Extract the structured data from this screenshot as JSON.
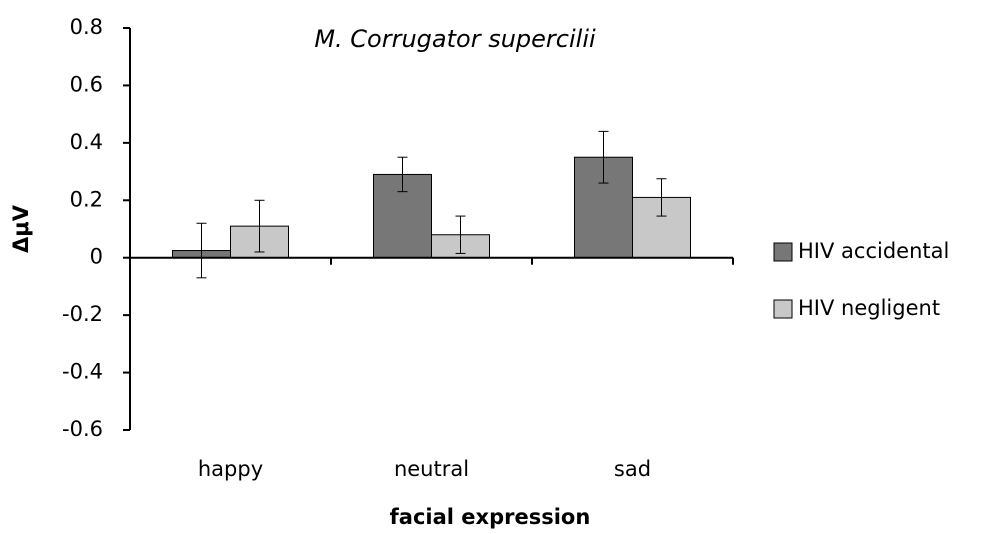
{
  "chart_data": {
    "type": "bar",
    "title": "M. Corrugator supercilii",
    "xlabel": "facial expression",
    "ylabel": "ΔμV",
    "categories": [
      "happy",
      "neutral",
      "sad"
    ],
    "series": [
      {
        "name": "HIV accidental",
        "color": "#777777",
        "values": [
          0.025,
          0.29,
          0.35
        ],
        "errors": [
          0.095,
          0.06,
          0.09
        ]
      },
      {
        "name": "HIV negligent",
        "color": "#c8c8c8",
        "values": [
          0.11,
          0.08,
          0.21
        ],
        "errors": [
          0.09,
          0.065,
          0.065
        ]
      }
    ],
    "ylim": [
      -0.6,
      0.8
    ],
    "yticks": [
      -0.6,
      -0.4,
      -0.2,
      0,
      0.2,
      0.4,
      0.6,
      0.8
    ],
    "legend": "right"
  }
}
